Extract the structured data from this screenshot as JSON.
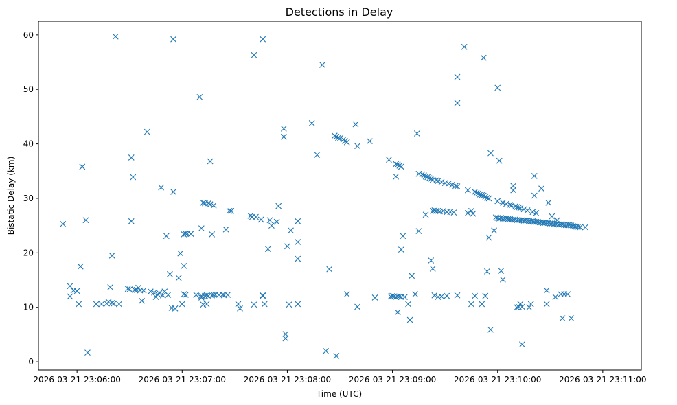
{
  "colors": {
    "marker": "#1f77b4",
    "axis": "#000000",
    "background": "#ffffff"
  },
  "chart_data": {
    "type": "scatter",
    "title": "Detections in Delay",
    "xlabel": "Time (UTC)",
    "ylabel": "Bistatic Delay (km)",
    "marker": "x",
    "x_unit": "seconds after 2026-03-21 23:06:00 UTC",
    "xlim": [
      -22,
      322
    ],
    "ylim": [
      -1.5,
      62.5
    ],
    "x_ticks": [
      {
        "value": 0,
        "label": "2026-03-21 23:06:00"
      },
      {
        "value": 60,
        "label": "2026-03-21 23:07:00"
      },
      {
        "value": 120,
        "label": "2026-03-21 23:08:00"
      },
      {
        "value": 180,
        "label": "2026-03-21 23:09:00"
      },
      {
        "value": 240,
        "label": "2026-03-21 23:10:00"
      },
      {
        "value": 300,
        "label": "2026-03-21 23:11:00"
      }
    ],
    "y_ticks": [
      {
        "value": 0,
        "label": "0"
      },
      {
        "value": 10,
        "label": "10"
      },
      {
        "value": 20,
        "label": "20"
      },
      {
        "value": 30,
        "label": "30"
      },
      {
        "value": 40,
        "label": "40"
      },
      {
        "value": 50,
        "label": "50"
      },
      {
        "value": 60,
        "label": "60"
      }
    ],
    "series": [
      {
        "name": "detections",
        "points": [
          [
            -8,
            25.3
          ],
          [
            -4,
            12
          ],
          [
            -4,
            13.9
          ],
          [
            -2,
            13.1
          ],
          [
            0,
            13
          ],
          [
            1,
            10.6
          ],
          [
            2,
            17.5
          ],
          [
            3,
            35.8
          ],
          [
            5,
            26
          ],
          [
            6,
            1.7
          ],
          [
            11,
            10.6
          ],
          [
            14,
            10.6
          ],
          [
            17,
            10.7
          ],
          [
            18,
            11
          ],
          [
            19,
            13.7
          ],
          [
            20,
            19.5
          ],
          [
            20,
            10.8
          ],
          [
            21,
            10.7
          ],
          [
            22,
            59.7
          ],
          [
            24,
            10.6
          ],
          [
            29,
            13.4
          ],
          [
            30,
            13.3
          ],
          [
            31,
            25.8
          ],
          [
            31,
            37.5
          ],
          [
            32,
            33.9
          ],
          [
            33,
            13.2
          ],
          [
            34,
            13.2
          ],
          [
            35,
            13.6
          ],
          [
            36,
            13.1
          ],
          [
            37,
            11.2
          ],
          [
            38,
            13.1
          ],
          [
            40,
            42.2
          ],
          [
            42,
            12.9
          ],
          [
            44,
            12.7
          ],
          [
            45,
            11.9
          ],
          [
            46,
            12.4
          ],
          [
            47,
            12.6
          ],
          [
            48,
            32
          ],
          [
            49,
            12.2
          ],
          [
            50,
            12.9
          ],
          [
            51,
            23.1
          ],
          [
            52,
            12.3
          ],
          [
            53,
            16.1
          ],
          [
            54,
            9.9
          ],
          [
            55,
            31.2
          ],
          [
            55,
            59.2
          ],
          [
            56,
            9.8
          ],
          [
            58,
            15.4
          ],
          [
            59,
            19.9
          ],
          [
            60,
            10.6
          ],
          [
            61,
            17.6
          ],
          [
            61,
            12.4
          ],
          [
            61,
            23.4
          ],
          [
            62,
            12.3
          ],
          [
            62,
            23.5
          ],
          [
            63,
            23.5
          ],
          [
            65,
            23.5
          ],
          [
            68,
            12.3
          ],
          [
            70,
            48.6
          ],
          [
            71,
            24.5
          ],
          [
            71,
            11.8
          ],
          [
            71,
            12.1
          ],
          [
            72,
            29.2
          ],
          [
            72,
            10.5
          ],
          [
            73,
            12.1
          ],
          [
            73,
            29.1
          ],
          [
            74,
            12.2
          ],
          [
            74,
            10.6
          ],
          [
            75,
            29.1
          ],
          [
            75,
            12.1
          ],
          [
            76,
            28.9
          ],
          [
            76,
            36.8
          ],
          [
            77,
            12.2
          ],
          [
            77,
            23.4
          ],
          [
            78,
            12.3
          ],
          [
            78,
            28.7
          ],
          [
            79,
            12.3
          ],
          [
            81,
            12.3
          ],
          [
            83,
            12.3
          ],
          [
            84,
            12.2
          ],
          [
            85,
            24.3
          ],
          [
            86,
            12.3
          ],
          [
            87,
            27.7
          ],
          [
            88,
            27.7
          ],
          [
            92,
            10.6
          ],
          [
            93,
            9.8
          ],
          [
            99,
            26.8
          ],
          [
            100,
            26.6
          ],
          [
            101,
            56.3
          ],
          [
            101,
            10.5
          ],
          [
            102,
            26.6
          ],
          [
            105,
            26.1
          ],
          [
            106,
            12.1
          ],
          [
            106,
            12.2
          ],
          [
            106,
            59.2
          ],
          [
            107,
            10.6
          ],
          [
            109,
            20.7
          ],
          [
            110,
            26
          ],
          [
            111,
            25
          ],
          [
            114,
            25.7
          ],
          [
            115,
            28.6
          ],
          [
            118,
            42.8
          ],
          [
            118,
            41.3
          ],
          [
            119,
            4.3
          ],
          [
            119,
            5.1
          ],
          [
            120,
            21.2
          ],
          [
            121,
            10.5
          ],
          [
            122,
            24.1
          ],
          [
            126,
            25.8
          ],
          [
            126,
            18.9
          ],
          [
            126,
            22
          ],
          [
            126,
            10.6
          ],
          [
            134,
            43.8
          ],
          [
            137,
            38
          ],
          [
            140,
            54.5
          ],
          [
            142,
            2
          ],
          [
            144,
            17
          ],
          [
            147,
            41.5
          ],
          [
            148,
            1.1
          ],
          [
            148,
            41.3
          ],
          [
            149,
            41.1
          ],
          [
            150,
            41
          ],
          [
            152,
            40.8
          ],
          [
            153,
            40.5
          ],
          [
            154,
            40.3
          ],
          [
            154,
            12.4
          ],
          [
            159,
            43.6
          ],
          [
            160,
            10.1
          ],
          [
            160,
            39.6
          ],
          [
            167,
            40.5
          ],
          [
            170,
            11.8
          ],
          [
            178,
            37.1
          ],
          [
            179,
            12
          ],
          [
            180,
            12.1
          ],
          [
            181,
            12
          ],
          [
            182,
            11.9
          ],
          [
            182,
            34
          ],
          [
            182,
            36.3
          ],
          [
            183,
            12
          ],
          [
            183,
            36.2
          ],
          [
            183,
            9.1
          ],
          [
            184,
            12
          ],
          [
            184,
            36
          ],
          [
            185,
            11.9
          ],
          [
            185,
            35.8
          ],
          [
            185,
            20.6
          ],
          [
            186,
            23.1
          ],
          [
            187,
            11.9
          ],
          [
            189,
            10.6
          ],
          [
            190,
            7.7
          ],
          [
            191,
            15.8
          ],
          [
            193,
            12.4
          ],
          [
            194,
            41.9
          ],
          [
            195,
            34.5
          ],
          [
            195,
            24
          ],
          [
            197,
            34.4
          ],
          [
            198,
            34.2
          ],
          [
            199,
            34
          ],
          [
            199,
            27
          ],
          [
            200,
            33.9
          ],
          [
            201,
            33.7
          ],
          [
            202,
            33.6
          ],
          [
            202,
            18.6
          ],
          [
            203,
            27.7
          ],
          [
            203,
            17.1
          ],
          [
            203,
            33.4
          ],
          [
            204,
            12.2
          ],
          [
            204,
            27.8
          ],
          [
            205,
            27.7
          ],
          [
            205,
            33.3
          ],
          [
            206,
            27.7
          ],
          [
            206,
            11.9
          ],
          [
            206,
            33.2
          ],
          [
            207,
            27.6
          ],
          [
            208,
            33
          ],
          [
            208,
            12
          ],
          [
            209,
            27.7
          ],
          [
            210,
            32.8
          ],
          [
            211,
            27.5
          ],
          [
            211,
            12.1
          ],
          [
            212,
            32.7
          ],
          [
            213,
            27.5
          ],
          [
            214,
            32.5
          ],
          [
            215,
            27.4
          ],
          [
            216,
            32.3
          ],
          [
            217,
            12.2
          ],
          [
            217,
            32.2
          ],
          [
            217,
            52.3
          ],
          [
            217,
            47.5
          ],
          [
            221,
            57.8
          ],
          [
            223,
            27.3
          ],
          [
            223,
            31.5
          ],
          [
            225,
            10.6
          ],
          [
            225,
            27.7
          ],
          [
            226,
            27.2
          ],
          [
            227,
            12.1
          ],
          [
            227,
            31.2
          ],
          [
            228,
            31
          ],
          [
            229,
            30.9
          ],
          [
            230,
            30.7
          ],
          [
            231,
            30.6
          ],
          [
            231,
            10.6
          ],
          [
            232,
            30.5
          ],
          [
            232,
            55.8
          ],
          [
            233,
            30.3
          ],
          [
            233,
            12.1
          ],
          [
            234,
            30.1
          ],
          [
            234,
            16.6
          ],
          [
            235,
            30
          ],
          [
            235,
            22.8
          ],
          [
            236,
            38.3
          ],
          [
            236,
            5.9
          ],
          [
            238,
            24.1
          ],
          [
            239,
            26.5
          ],
          [
            240,
            50.3
          ],
          [
            240,
            26.4
          ],
          [
            240,
            29.5
          ],
          [
            241,
            26.3
          ],
          [
            241,
            36.9
          ],
          [
            242,
            26.4
          ],
          [
            242,
            16.7
          ],
          [
            243,
            26.3
          ],
          [
            243,
            15.1
          ],
          [
            243,
            29.2
          ],
          [
            244,
            26.3
          ],
          [
            245,
            26.3
          ],
          [
            245,
            29
          ],
          [
            246,
            26.2
          ],
          [
            247,
            26.2
          ],
          [
            247,
            28.8
          ],
          [
            248,
            26.1
          ],
          [
            248,
            28.7
          ],
          [
            249,
            26.1
          ],
          [
            249,
            32.3
          ],
          [
            249,
            31.5
          ],
          [
            250,
            26.1
          ],
          [
            250,
            28.5
          ],
          [
            251,
            26
          ],
          [
            251,
            10
          ],
          [
            251,
            28.4
          ],
          [
            252,
            26
          ],
          [
            252,
            10.1
          ],
          [
            252,
            28.3
          ],
          [
            253,
            26
          ],
          [
            253,
            10.6
          ],
          [
            253,
            28.2
          ],
          [
            254,
            26
          ],
          [
            254,
            3.2
          ],
          [
            254,
            10.1
          ],
          [
            255,
            25.9
          ],
          [
            255,
            28
          ],
          [
            256,
            25.9
          ],
          [
            257,
            25.9
          ],
          [
            257,
            27.8
          ],
          [
            258,
            25.8
          ],
          [
            258,
            10
          ],
          [
            259,
            25.8
          ],
          [
            259,
            10.6
          ],
          [
            260,
            25.8
          ],
          [
            260,
            27.5
          ],
          [
            261,
            25.7
          ],
          [
            261,
            30.5
          ],
          [
            261,
            34.1
          ],
          [
            262,
            25.7
          ],
          [
            262,
            27.3
          ],
          [
            263,
            25.7
          ],
          [
            264,
            25.6
          ],
          [
            265,
            25.6
          ],
          [
            265,
            31.8
          ],
          [
            266,
            25.5
          ],
          [
            267,
            25.5
          ],
          [
            268,
            25.5
          ],
          [
            268,
            13.1
          ],
          [
            268,
            10.6
          ],
          [
            269,
            25.5
          ],
          [
            269,
            29.2
          ],
          [
            270,
            25.4
          ],
          [
            271,
            25.4
          ],
          [
            271,
            26.7
          ],
          [
            272,
            25.3
          ],
          [
            273,
            25.3
          ],
          [
            273,
            11.9
          ],
          [
            274,
            25.3
          ],
          [
            274,
            26
          ],
          [
            275,
            25.2
          ],
          [
            276,
            25.2
          ],
          [
            276,
            12.4
          ],
          [
            277,
            25.2
          ],
          [
            277,
            8
          ],
          [
            278,
            25.1
          ],
          [
            278,
            12.4
          ],
          [
            279,
            25.1
          ],
          [
            280,
            25.1
          ],
          [
            280,
            12.4
          ],
          [
            281,
            25.1
          ],
          [
            282,
            25
          ],
          [
            282,
            8
          ],
          [
            283,
            24.9
          ],
          [
            284,
            24.9
          ],
          [
            285,
            24.8
          ],
          [
            286,
            24.8
          ],
          [
            287,
            24.7
          ],
          [
            290,
            24.7
          ]
        ]
      }
    ]
  }
}
